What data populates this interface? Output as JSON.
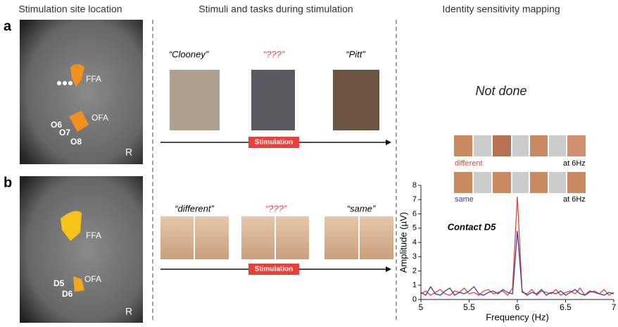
{
  "headers": [
    "Stimulation site location",
    "Stimuli and tasks during stimulation",
    "Identity sensitivity mapping"
  ],
  "panels": [
    {
      "label": "a",
      "brain_labels": [
        "FFA",
        "OFA",
        "O6",
        "O7",
        "O8",
        "R"
      ],
      "stimuli": [
        "“Clooney”",
        "“???”",
        "“Pitt”"
      ],
      "bar": "Stimulation",
      "result": "Not done"
    },
    {
      "label": "b",
      "brain_labels": [
        "FFA",
        "OFA",
        "D5",
        "D6",
        "R"
      ],
      "stimuli": [
        "“different”",
        "“???”",
        "“same”"
      ],
      "bar": "Stimulation"
    }
  ],
  "sequence_labels": [
    "at 6Hz",
    "at 6Hz"
  ],
  "chart_data": {
    "type": "line",
    "title": "Contact D5",
    "x_label": "Frequency (Hz)",
    "y_label": "Amplitude (µV)",
    "x": [
      5,
      5.05,
      5.1,
      5.15,
      5.2,
      5.25,
      5.3,
      5.35,
      5.4,
      5.45,
      5.5,
      5.55,
      5.6,
      5.65,
      5.7,
      5.75,
      5.8,
      5.85,
      5.9,
      5.95,
      6,
      6.05,
      6.1,
      6.15,
      6.2,
      6.25,
      6.3,
      6.35,
      6.4,
      6.45,
      6.5,
      6.55,
      6.6,
      6.65,
      6.7,
      6.75,
      6.8,
      6.85,
      6.9,
      6.95,
      7
    ],
    "series": [
      {
        "name": "different",
        "color": "#e8413c",
        "values": [
          0.4,
          0.6,
          0.3,
          0.5,
          0.7,
          0.4,
          0.3,
          0.6,
          0.5,
          0.8,
          0.4,
          0.5,
          0.3,
          0.6,
          0.7,
          0.4,
          0.5,
          0.6,
          0.3,
          0.8,
          7.2,
          0.5,
          0.4,
          0.7,
          0.3,
          0.6,
          0.5,
          0.4,
          0.7,
          0.3,
          0.5,
          0.6,
          0.4,
          0.8,
          0.3,
          0.5,
          0.6,
          0.4,
          0.7,
          0.3,
          0.5
        ]
      },
      {
        "name": "same",
        "color": "#3a3fa8",
        "values": [
          0.5,
          0.3,
          0.9,
          0.4,
          0.3,
          0.6,
          0.8,
          0.3,
          0.5,
          0.4,
          0.6,
          0.9,
          0.4,
          0.3,
          0.5,
          0.6,
          0.4,
          0.7,
          0.5,
          0.4,
          4.8,
          0.6,
          0.3,
          0.5,
          0.4,
          0.7,
          0.3,
          0.5,
          0.4,
          0.6,
          0.3,
          0.5,
          0.7,
          0.4,
          0.3,
          0.6,
          0.5,
          0.4,
          0.3,
          0.5,
          0.4
        ]
      }
    ],
    "xlim": [
      5,
      7
    ],
    "xticks": [
      5,
      5.5,
      6,
      6.5,
      7
    ],
    "ylim": [
      0,
      8
    ],
    "yticks": [
      0,
      1,
      2,
      3,
      4,
      5,
      6,
      7,
      8
    ]
  }
}
